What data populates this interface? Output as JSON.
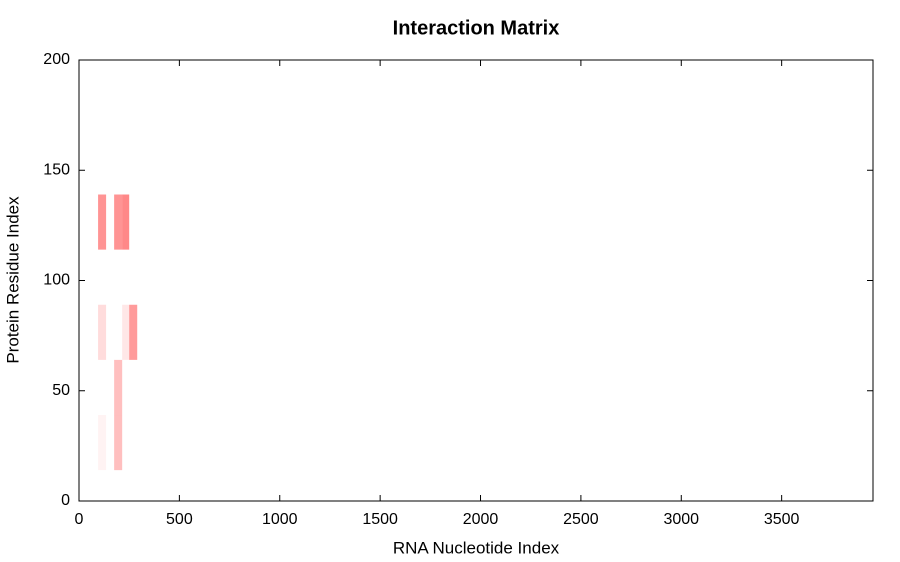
{
  "chart_data": {
    "type": "heatmap",
    "title": "Interaction Matrix",
    "x_label": "RNA Nucleotide Index",
    "y_label": "Protein Residue Index",
    "color": "#ff1111",
    "xlim": [
      0,
      3955
    ],
    "ylim": [
      0,
      200
    ],
    "xticks": [
      0,
      500,
      1000,
      1500,
      2000,
      2500,
      3000,
      3500
    ],
    "yticks": [
      0,
      50,
      100,
      150,
      200
    ],
    "cells": [
      {
        "x": [
          95,
          135
        ],
        "y": [
          114,
          139
        ],
        "value": 0.45
      },
      {
        "x": [
          175,
          215
        ],
        "y": [
          114,
          139
        ],
        "value": 0.45
      },
      {
        "x": [
          215,
          250
        ],
        "y": [
          114,
          139
        ],
        "value": 0.5
      },
      {
        "x": [
          95,
          135
        ],
        "y": [
          64,
          89
        ],
        "value": 0.15
      },
      {
        "x": [
          215,
          250
        ],
        "y": [
          64,
          89
        ],
        "value": 0.1
      },
      {
        "x": [
          250,
          290
        ],
        "y": [
          64,
          89
        ],
        "value": 0.42
      },
      {
        "x": [
          175,
          215
        ],
        "y": [
          39,
          64
        ],
        "value": 0.27
      },
      {
        "x": [
          95,
          135
        ],
        "y": [
          14,
          39
        ],
        "value": 0.05
      },
      {
        "x": [
          175,
          215
        ],
        "y": [
          14,
          39
        ],
        "value": 0.27
      }
    ]
  }
}
